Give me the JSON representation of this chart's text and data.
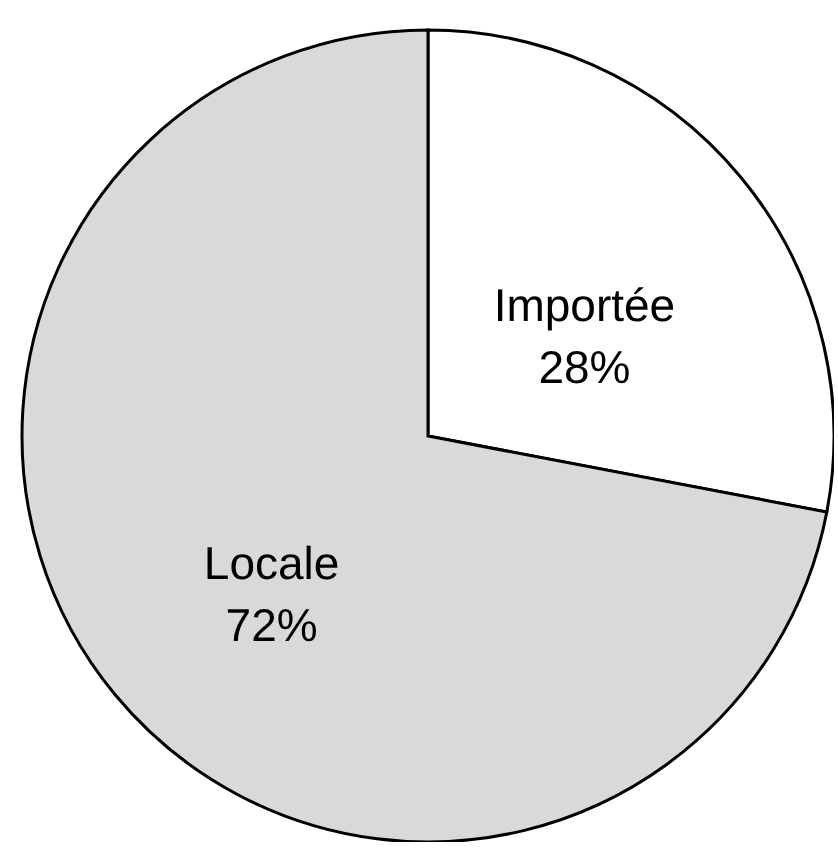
{
  "chart_data": {
    "type": "pie",
    "categories": [
      "Importée",
      "Locale"
    ],
    "values": [
      28,
      72
    ],
    "value_labels": [
      "28%",
      "72%"
    ],
    "colors": [
      "#ffffff",
      "#d9d9d9"
    ]
  }
}
